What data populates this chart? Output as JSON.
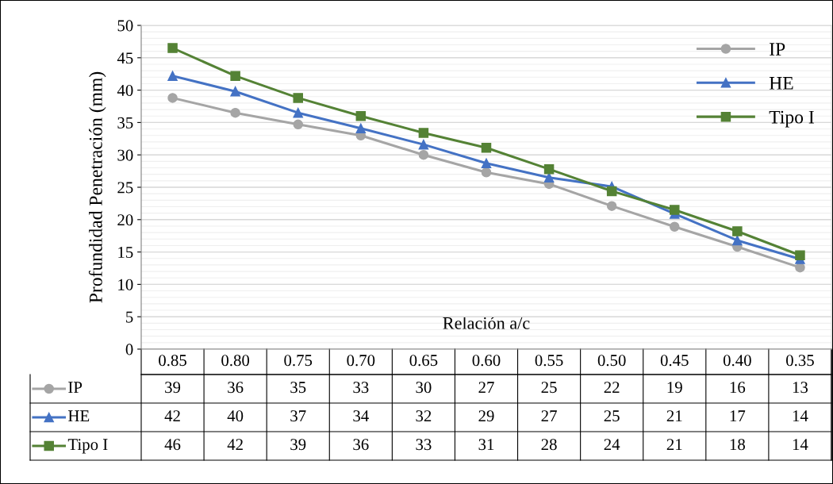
{
  "chart_data": {
    "type": "line",
    "xlabel": "Relación a/c",
    "ylabel": "Profundidad Penetración (mm)",
    "categories": [
      "0.85",
      "0.80",
      "0.75",
      "0.70",
      "0.65",
      "0.60",
      "0.55",
      "0.50",
      "0.45",
      "0.40",
      "0.35"
    ],
    "ylim": [
      0,
      50
    ],
    "yticks": [
      0,
      5,
      10,
      15,
      20,
      25,
      30,
      35,
      40,
      45,
      50
    ],
    "grid": "y",
    "legend": "top right",
    "series": [
      {
        "name": "IP",
        "color": "#a5a5a5",
        "marker": "circle",
        "values": [
          38.8,
          36.5,
          34.7,
          33.0,
          30.0,
          27.3,
          25.5,
          22.1,
          18.9,
          15.8,
          12.6
        ],
        "value_labels": [
          "39",
          "36",
          "35",
          "33",
          "30",
          "27",
          "25",
          "22",
          "19",
          "16",
          "13"
        ]
      },
      {
        "name": "HE",
        "color": "#4472c4",
        "marker": "triangle",
        "values": [
          42.2,
          39.8,
          36.5,
          34.1,
          31.6,
          28.7,
          26.5,
          25.1,
          20.9,
          16.8,
          13.9
        ],
        "value_labels": [
          "42",
          "40",
          "37",
          "34",
          "32",
          "29",
          "27",
          "25",
          "21",
          "17",
          "14"
        ]
      },
      {
        "name": "Tipo I",
        "color": "#548235",
        "marker": "square",
        "values": [
          46.5,
          42.2,
          38.8,
          36.0,
          33.4,
          31.1,
          27.8,
          24.4,
          21.5,
          18.2,
          14.5
        ],
        "value_labels": [
          "46",
          "42",
          "39",
          "36",
          "33",
          "31",
          "28",
          "24",
          "21",
          "18",
          "14"
        ]
      }
    ]
  }
}
